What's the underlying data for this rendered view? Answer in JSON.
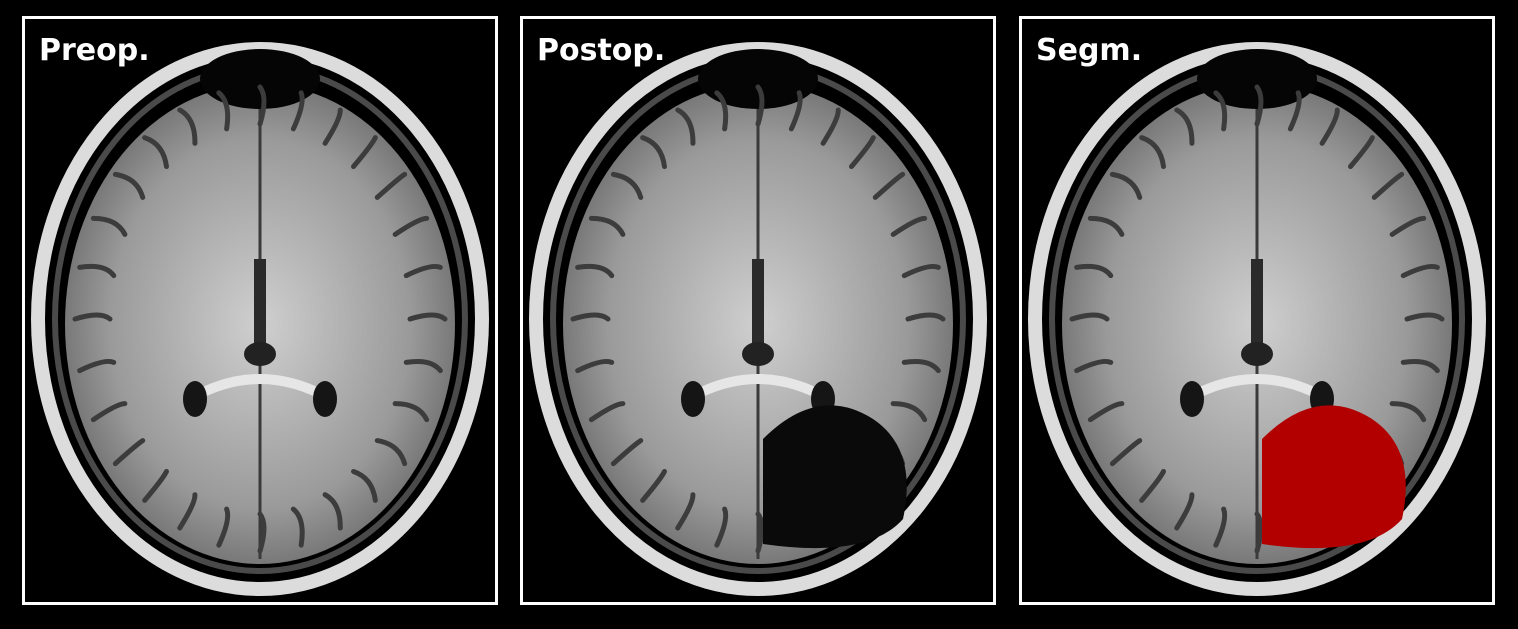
{
  "panels": [
    {
      "label": "Preop.",
      "image": "axial-mri-brain-preoperative",
      "resection_cavity": false,
      "segmentation": false
    },
    {
      "label": "Postop.",
      "image": "axial-mri-brain-postoperative",
      "resection_cavity": true,
      "segmentation": false
    },
    {
      "label": "Segm.",
      "image": "axial-mri-brain-segmentation",
      "resection_cavity": true,
      "segmentation": true
    }
  ],
  "colors": {
    "background": "#000000",
    "frame": "#ffffff",
    "label": "#ffffff",
    "segmentation": "#b20000"
  }
}
